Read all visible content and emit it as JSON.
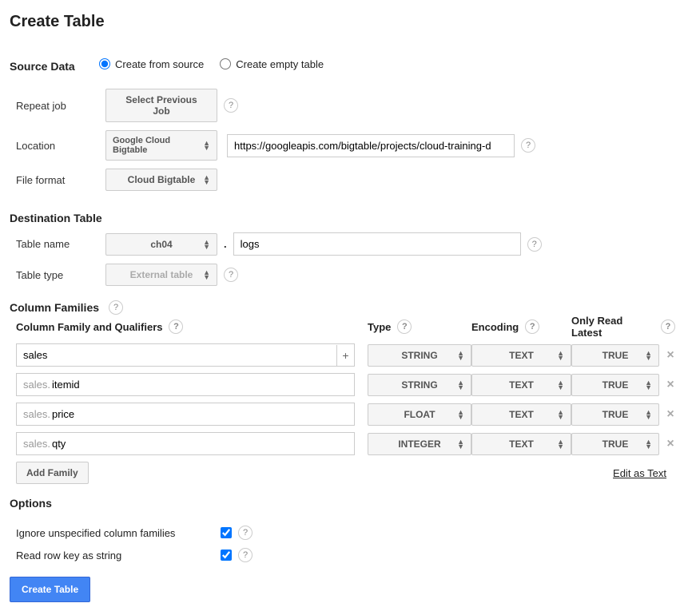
{
  "page": {
    "title": "Create Table"
  },
  "sourceData": {
    "heading": "Source Data",
    "radios": {
      "fromSource": "Create from source",
      "emptyTable": "Create empty table"
    },
    "repeatJob": {
      "label": "Repeat job",
      "button": "Select Previous Job"
    },
    "location": {
      "label": "Location",
      "select": "Google Cloud Bigtable",
      "url": "https://googleapis.com/bigtable/projects/cloud-training-d"
    },
    "fileFormat": {
      "label": "File format",
      "select": "Cloud Bigtable"
    }
  },
  "destTable": {
    "heading": "Destination Table",
    "tableName": {
      "label": "Table name",
      "dataset": "ch04",
      "name": "logs"
    },
    "tableType": {
      "label": "Table type",
      "select": "External table"
    }
  },
  "columnFamilies": {
    "heading": "Column Families",
    "headers": {
      "qualifiers": "Column Family and Qualifiers",
      "type": "Type",
      "encoding": "Encoding",
      "onlyReadLatest": "Only Read Latest"
    },
    "family": {
      "name": "sales",
      "type": "STRING",
      "encoding": "TEXT",
      "onlyReadLatest": "TRUE"
    },
    "qualifiers": [
      {
        "prefix": "sales.",
        "name": "itemid",
        "type": "STRING",
        "encoding": "TEXT",
        "onlyReadLatest": "TRUE"
      },
      {
        "prefix": "sales.",
        "name": "price",
        "type": "FLOAT",
        "encoding": "TEXT",
        "onlyReadLatest": "TRUE"
      },
      {
        "prefix": "sales.",
        "name": "qty",
        "type": "INTEGER",
        "encoding": "TEXT",
        "onlyReadLatest": "TRUE"
      }
    ],
    "addFamily": "Add Family",
    "editAsText": "Edit as Text"
  },
  "options": {
    "heading": "Options",
    "ignoreUnspecified": "Ignore unspecified column families",
    "readRowKey": "Read row key as string"
  },
  "footer": {
    "createButton": "Create Table"
  }
}
